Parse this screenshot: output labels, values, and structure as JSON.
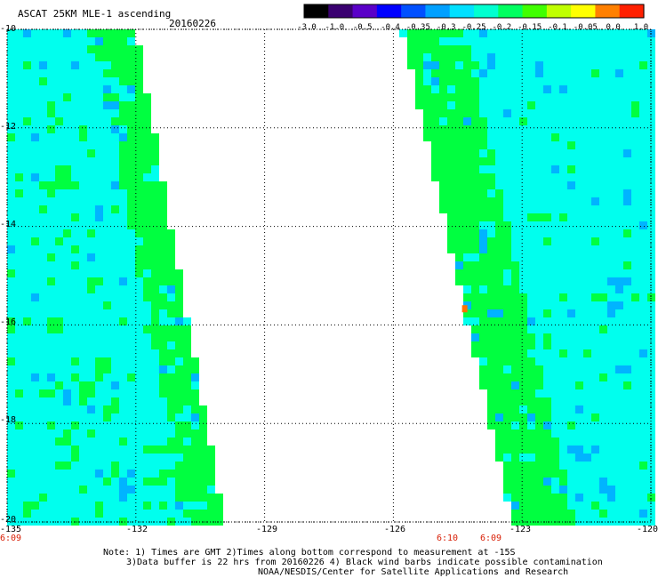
{
  "header": {
    "title": "ASCAT 25KM MLE-1 ascending",
    "date": "20160226"
  },
  "colorbar": {
    "labels": [
      "-3.0",
      "-1.0",
      "-0.5",
      "-0.4",
      "-0.35",
      "-0.3",
      "-0.25",
      "-0.2",
      "-0.15",
      "-0.1",
      "-0.05",
      "0.0",
      "1.0"
    ],
    "colors": [
      "#000000",
      "#3a0070",
      "#5a00c8",
      "#0000ff",
      "#0050ff",
      "#00a0ff",
      "#00e0ff",
      "#00ffd0",
      "#00ff60",
      "#40ff00",
      "#c0ff00",
      "#ffff00",
      "#ff8000",
      "#ff2000"
    ]
  },
  "map": {
    "lat_labels": [
      "-10",
      "-12",
      "-14",
      "-16",
      "-18",
      "-20"
    ],
    "lon_labels": [
      "-135",
      "-132",
      "-129",
      "-126",
      "-123",
      "-120"
    ],
    "lat_range": [
      -20,
      -10
    ],
    "lon_range": [
      -135,
      -120
    ],
    "grid": true,
    "colors": {
      "low": "#00ffee",
      "mid": "#00ff40",
      "blue": "#00b4ff",
      "yellow": "#e0ff00",
      "orange": "#ff7000"
    }
  },
  "times": {
    "left": "6:09",
    "middle_a": "6:10",
    "middle_b": "6:09"
  },
  "footer": {
    "line1": "Note: 1) Times are GMT 2)Times along bottom correspond to measurement at -15S",
    "line2": "3)Data buffer is 22 hrs from 20160226 4) Black wind barbs indicate possible contamination",
    "line3": "NOAA/NESDIS/Center for Satellite Applications and Research"
  }
}
